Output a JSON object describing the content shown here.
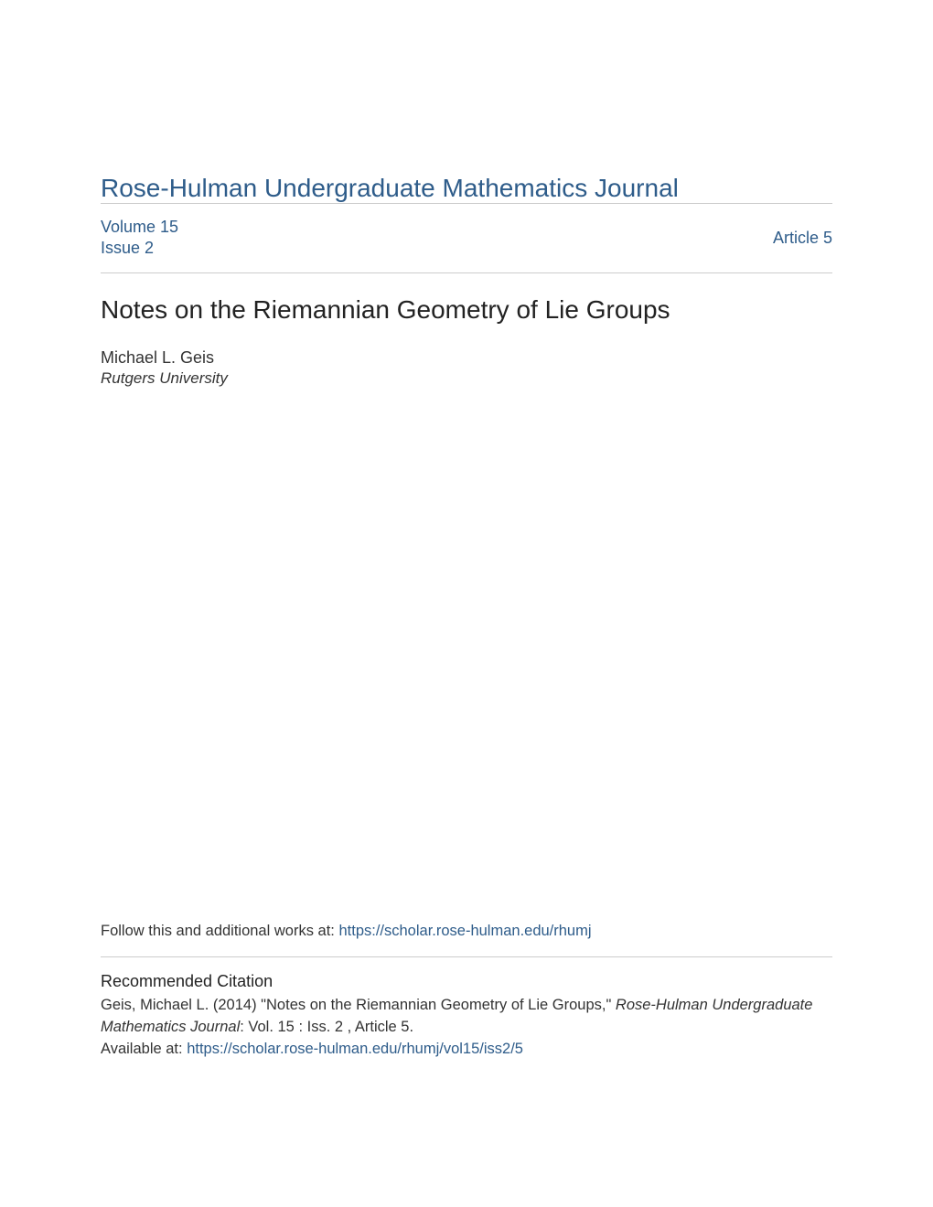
{
  "journal": {
    "title": "Rose-Hulman Undergraduate Mathematics Journal",
    "link_color": "#2e5c8a"
  },
  "meta": {
    "volume": "Volume 15",
    "issue": "Issue 2",
    "article": "Article 5"
  },
  "article": {
    "title": "Notes on the Riemannian Geometry of Lie Groups",
    "author": "Michael L. Geis",
    "affiliation": "Rutgers University"
  },
  "follow": {
    "prefix": "Follow this and additional works at: ",
    "url": "https://scholar.rose-hulman.edu/rhumj"
  },
  "citation": {
    "heading": "Recommended Citation",
    "text_part1": "Geis, Michael L. (2014) \"Notes on the Riemannian Geometry of Lie Groups,\" ",
    "text_italic": "Rose-Hulman Undergraduate Mathematics Journal",
    "text_part2": ": Vol. 15 : Iss. 2 , Article 5.",
    "available_prefix": "Available at: ",
    "available_url": "https://scholar.rose-hulman.edu/rhumj/vol15/iss2/5"
  },
  "colors": {
    "link": "#2e5c8a",
    "text": "#333333",
    "divider": "#cccccc",
    "background": "#ffffff"
  }
}
